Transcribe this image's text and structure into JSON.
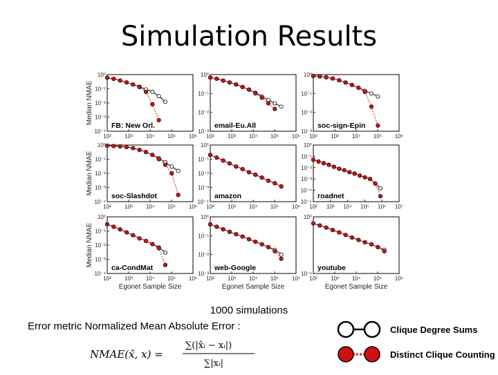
{
  "title": "Simulation Results",
  "simulations": "1000 simulations",
  "metric": "Error metric  Normalized Mean Absolute Error :",
  "formula": {
    "lhs": "NMAE(x̂, x) =",
    "num": "∑(|x̂ᵢ − xᵢ|)",
    "den": "∑|xᵢ|"
  },
  "legend": [
    {
      "label": "Clique Degree Sums",
      "color": "#000000",
      "fill": "#ffffff",
      "dash": false
    },
    {
      "label": "Distinct Clique Counting",
      "color": "#cc2222",
      "fill": "#cc1111",
      "dash": true
    }
  ],
  "axes": {
    "ylabel": "Median NMAE",
    "xlabel": "Egonet Sample Size"
  },
  "chart_data": [
    {
      "type": "line",
      "name": "FB: New Orl.",
      "xlim": [
        100,
        1000000
      ],
      "ylim": [
        0.0001,
        1
      ],
      "xticks": [
        "10²",
        "10³",
        "10⁴",
        "10⁵",
        "10⁶"
      ],
      "yticks": [
        "10⁰",
        "10⁻¹",
        "10⁻²",
        "10⁻³",
        "10⁻⁴"
      ],
      "series": [
        {
          "name": "Clique Degree Sums",
          "x": [
            100,
            200,
            400,
            800,
            1600,
            3200,
            6400,
            12800,
            25600,
            51200
          ],
          "y": [
            0.6,
            0.5,
            0.38,
            0.28,
            0.2,
            0.14,
            0.09,
            0.06,
            0.03,
            0.012
          ]
        },
        {
          "name": "Distinct Clique Counting",
          "x": [
            100,
            200,
            400,
            800,
            1600,
            3200,
            6400,
            12800,
            25600
          ],
          "y": [
            0.6,
            0.5,
            0.38,
            0.28,
            0.2,
            0.13,
            0.06,
            0.008,
            0.0006
          ]
        }
      ]
    },
    {
      "type": "line",
      "name": "email-Eu.All",
      "xlim": [
        100,
        1000000
      ],
      "ylim": [
        0.001,
        1
      ],
      "xticks": [
        "10²",
        "10³",
        "10⁴",
        "10⁵",
        "10⁶"
      ],
      "yticks": [
        "10⁰",
        "10⁻¹",
        "10⁻²",
        "10⁻³"
      ],
      "series": [
        {
          "name": "Clique Degree Sums",
          "x": [
            100,
            200,
            400,
            800,
            1600,
            3200,
            6400,
            12800,
            25600,
            51200,
            102400,
            204800
          ],
          "y": [
            0.7,
            0.6,
            0.48,
            0.38,
            0.3,
            0.22,
            0.16,
            0.11,
            0.07,
            0.045,
            0.03,
            0.02
          ]
        },
        {
          "name": "Distinct Clique Counting",
          "x": [
            100,
            200,
            400,
            800,
            1600,
            3200,
            6400,
            12800,
            25600,
            51200,
            102400
          ],
          "y": [
            0.7,
            0.6,
            0.48,
            0.38,
            0.3,
            0.22,
            0.16,
            0.1,
            0.06,
            0.03,
            0.015
          ]
        }
      ]
    },
    {
      "type": "line",
      "name": "soc-sign-Epin",
      "xlim": [
        100,
        1000000
      ],
      "ylim": [
        0.001,
        1
      ],
      "xticks": [
        "10²",
        "10³",
        "10⁴",
        "10⁵",
        "10⁶"
      ],
      "yticks": [
        "10⁰",
        "10⁻¹",
        "10⁻²",
        "10⁻³"
      ],
      "series": [
        {
          "name": "Clique Degree Sums",
          "x": [
            100,
            200,
            400,
            800,
            1600,
            3200,
            6400,
            12800,
            25600,
            51200,
            102400
          ],
          "y": [
            0.85,
            0.8,
            0.72,
            0.62,
            0.5,
            0.38,
            0.28,
            0.2,
            0.14,
            0.1,
            0.07
          ]
        },
        {
          "name": "Distinct Clique Counting",
          "x": [
            100,
            200,
            400,
            800,
            1600,
            3200,
            6400,
            12800,
            25600,
            51200,
            102400
          ],
          "y": [
            0.85,
            0.8,
            0.72,
            0.62,
            0.5,
            0.38,
            0.28,
            0.2,
            0.12,
            0.02,
            0.002
          ]
        }
      ]
    },
    {
      "type": "line",
      "name": "soc-Slashdot",
      "xlim": [
        100,
        1000000
      ],
      "ylim": [
        0.0001,
        1
      ],
      "xticks": [
        "10²",
        "10³",
        "10⁴",
        "10⁵",
        "10⁶"
      ],
      "yticks": [
        "10⁰",
        "10⁻¹",
        "10⁻²",
        "10⁻³",
        "10⁻⁴"
      ],
      "series": [
        {
          "name": "Clique Degree Sums",
          "x": [
            100,
            200,
            400,
            800,
            1600,
            3200,
            6400,
            12800,
            25600,
            51200,
            102400,
            204800
          ],
          "y": [
            0.9,
            0.85,
            0.8,
            0.72,
            0.6,
            0.45,
            0.32,
            0.2,
            0.12,
            0.06,
            0.03,
            0.015
          ]
        },
        {
          "name": "Distinct Clique Counting",
          "x": [
            100,
            200,
            400,
            800,
            1600,
            3200,
            6400,
            12800,
            25600,
            51200,
            102400,
            204800
          ],
          "y": [
            0.9,
            0.85,
            0.8,
            0.72,
            0.6,
            0.45,
            0.32,
            0.2,
            0.1,
            0.04,
            0.01,
            0.0003
          ]
        }
      ]
    },
    {
      "type": "line",
      "name": "amazon",
      "xlim": [
        100,
        1000000
      ],
      "ylim": [
        0.0001,
        1
      ],
      "xticks": [
        "10²",
        "10³",
        "10⁴",
        "10⁵",
        "10⁶"
      ],
      "yticks": [
        "10⁰",
        "10⁻¹",
        "10⁻²",
        "10⁻³",
        "10⁻⁴"
      ],
      "series": [
        {
          "name": "Clique Degree Sums",
          "x": [
            100,
            200,
            400,
            800,
            1600,
            3200,
            6400,
            12800,
            25600,
            51200,
            102400,
            204800
          ],
          "y": [
            0.2,
            0.13,
            0.08,
            0.05,
            0.03,
            0.02,
            0.012,
            0.008,
            0.005,
            0.003,
            0.002,
            0.0012
          ]
        },
        {
          "name": "Distinct Clique Counting",
          "x": [
            100,
            200,
            400,
            800,
            1600,
            3200,
            6400,
            12800,
            25600,
            51200,
            102400,
            204800
          ],
          "y": [
            0.2,
            0.13,
            0.08,
            0.05,
            0.03,
            0.02,
            0.012,
            0.008,
            0.005,
            0.003,
            0.002,
            0.0012
          ]
        }
      ]
    },
    {
      "type": "line",
      "name": "roadnet",
      "xlim": [
        100,
        10000000
      ],
      "ylim": [
        1e-05,
        1
      ],
      "xticks": [
        "10²",
        "10³",
        "10⁴",
        "10⁵",
        "10⁶",
        "10⁷"
      ],
      "yticks": [
        "10⁰",
        "10⁻¹",
        "10⁻²",
        "10⁻³",
        "10⁻⁴",
        "10⁻⁵"
      ],
      "series": [
        {
          "name": "Clique Degree Sums",
          "x": [
            100,
            200,
            400,
            800,
            1600,
            3200,
            6400,
            12800,
            25600,
            51200,
            102400,
            204800,
            409600,
            819200
          ],
          "y": [
            0.05,
            0.035,
            0.025,
            0.018,
            0.012,
            0.008,
            0.006,
            0.004,
            0.003,
            0.002,
            0.0014,
            0.001,
            0.0004,
            0.00015
          ]
        },
        {
          "name": "Distinct Clique Counting",
          "x": [
            100,
            200,
            400,
            800,
            1600,
            3200,
            6400,
            12800,
            25600,
            51200,
            102400,
            204800,
            409600,
            819200
          ],
          "y": [
            0.05,
            0.035,
            0.025,
            0.018,
            0.012,
            0.008,
            0.006,
            0.004,
            0.003,
            0.002,
            0.0014,
            0.001,
            0.0004,
            3e-05
          ]
        }
      ]
    },
    {
      "type": "line",
      "name": "ca-CondMat",
      "xlim": [
        100,
        1000000
      ],
      "ylim": [
        0.0001,
        1
      ],
      "xticks": [
        "10²",
        "10³",
        "10⁴",
        "10⁵",
        "10⁶"
      ],
      "yticks": [
        "10⁰",
        "10⁻¹",
        "10⁻²",
        "10⁻³",
        "10⁻⁴"
      ],
      "series": [
        {
          "name": "Clique Degree Sums",
          "x": [
            100,
            200,
            400,
            800,
            1600,
            3200,
            6400,
            12800,
            25600,
            51200
          ],
          "y": [
            0.3,
            0.2,
            0.13,
            0.08,
            0.05,
            0.03,
            0.02,
            0.012,
            0.007,
            0.003
          ]
        },
        {
          "name": "Distinct Clique Counting",
          "x": [
            100,
            200,
            400,
            800,
            1600,
            3200,
            6400,
            12800,
            25600,
            51200
          ],
          "y": [
            0.3,
            0.2,
            0.13,
            0.08,
            0.05,
            0.03,
            0.02,
            0.012,
            0.006,
            0.0004
          ]
        }
      ]
    },
    {
      "type": "line",
      "name": "web-Google",
      "xlim": [
        100,
        1000000
      ],
      "ylim": [
        0.001,
        1
      ],
      "xticks": [
        "10²",
        "10³",
        "10⁴",
        "10⁵",
        "10⁶"
      ],
      "yticks": [
        "10⁰",
        "10⁻¹",
        "10⁻²",
        "10⁻³"
      ],
      "series": [
        {
          "name": "Clique Degree Sums",
          "x": [
            100,
            200,
            400,
            800,
            1600,
            3200,
            6400,
            12800,
            25600,
            51200,
            102400,
            204800
          ],
          "y": [
            0.4,
            0.3,
            0.22,
            0.16,
            0.12,
            0.09,
            0.065,
            0.048,
            0.035,
            0.025,
            0.018,
            0.01
          ]
        },
        {
          "name": "Distinct Clique Counting",
          "x": [
            100,
            200,
            400,
            800,
            1600,
            3200,
            6400,
            12800,
            25600,
            51200,
            102400,
            204800
          ],
          "y": [
            0.4,
            0.3,
            0.22,
            0.16,
            0.12,
            0.09,
            0.065,
            0.048,
            0.035,
            0.025,
            0.015,
            0.006
          ]
        }
      ]
    },
    {
      "type": "line",
      "name": "youtube",
      "xlim": [
        100,
        1000000
      ],
      "ylim": [
        0.001,
        1
      ],
      "xticks": [
        "10²",
        "10³",
        "10⁴",
        "10⁵",
        "10⁶"
      ],
      "yticks": [
        "10⁰",
        "10⁻¹"
      ],
      "series": [
        {
          "name": "Clique Degree Sums",
          "x": [
            100,
            200,
            400,
            800,
            1600,
            3200,
            6400,
            12800,
            25600,
            51200,
            102400,
            204800
          ],
          "y": [
            0.45,
            0.35,
            0.27,
            0.2,
            0.15,
            0.11,
            0.08,
            0.06,
            0.045,
            0.035,
            0.025,
            0.018
          ]
        },
        {
          "name": "Distinct Clique Counting",
          "x": [
            100,
            200,
            400,
            800,
            1600,
            3200,
            6400,
            12800,
            25600,
            51200,
            102400,
            204800
          ],
          "y": [
            0.45,
            0.35,
            0.27,
            0.2,
            0.15,
            0.11,
            0.08,
            0.06,
            0.045,
            0.035,
            0.025,
            0.015
          ]
        }
      ]
    }
  ]
}
